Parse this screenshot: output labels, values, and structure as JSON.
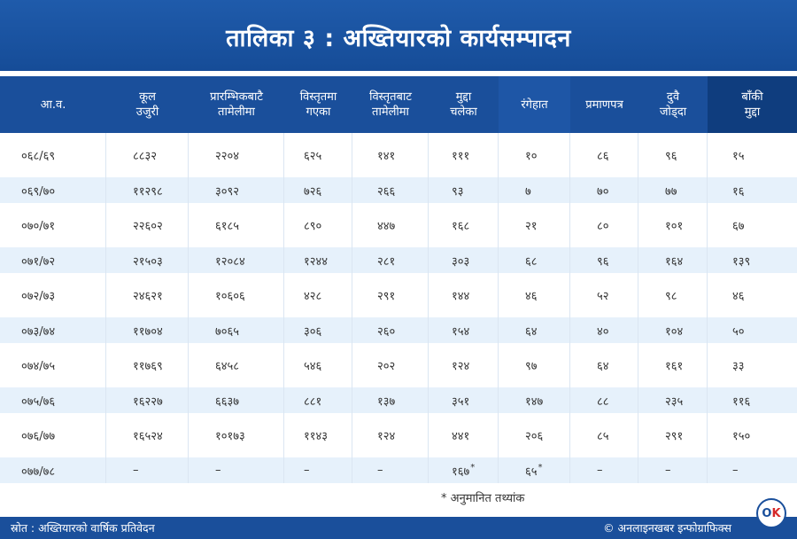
{
  "title": "तालिका ३ : अख्तियारको कार्यसम्पादन",
  "table": {
    "headers": [
      {
        "line1": "आ.व.",
        "line2": ""
      },
      {
        "line1": "कूल",
        "line2": "उजुरी"
      },
      {
        "line1": "प्रारम्भिकबाटै",
        "line2": "तामेलीमा"
      },
      {
        "line1": "विस्तृतमा",
        "line2": "गएका"
      },
      {
        "line1": "विस्तृतबाट",
        "line2": "तामेलीमा"
      },
      {
        "line1": "मुद्दा",
        "line2": "चलेका"
      },
      {
        "line1": "रंगेहात",
        "line2": ""
      },
      {
        "line1": "प्रमाणपत्र",
        "line2": ""
      },
      {
        "line1": "दुवै",
        "line2": "जोड्दा"
      },
      {
        "line1": "बाँकी",
        "line2": "मुद्दा"
      }
    ],
    "rows": [
      [
        "०६८/६९",
        "८८३२",
        "२२०४",
        "६२५",
        "१४१",
        "१११",
        "१०",
        "८६",
        "९६",
        "१५"
      ],
      [
        "०६९/७०",
        "११२९८",
        "३०९२",
        "७२६",
        "२६६",
        "९३",
        "७",
        "७०",
        "७७",
        "१६"
      ],
      [
        "०७०/७१",
        "२२६०२",
        "६१८५",
        "८९०",
        "४४७",
        "१६८",
        "२१",
        "८०",
        "१०१",
        "६७"
      ],
      [
        "०७१/७२",
        "२१५०३",
        "१२०८४",
        "१२४४",
        "२८१",
        "३०३",
        "६८",
        "९६",
        "१६४",
        "१३९"
      ],
      [
        "०७२/७३",
        "२४६२१",
        "१०६०६",
        "४२८",
        "२९१",
        "१४४",
        "४६",
        "५२",
        "९८",
        "४६"
      ],
      [
        "०७३/७४",
        "११७०४",
        "७०६५",
        "३०६",
        "२६०",
        "१५४",
        "६४",
        "४०",
        "१०४",
        "५०"
      ],
      [
        "०७४/७५",
        "११७६९",
        "६४५८",
        "५४६",
        "२०२",
        "१२४",
        "९७",
        "६४",
        "१६१",
        "३३"
      ],
      [
        "०७५/७६",
        "१६२२७",
        "६६३७",
        "८८१",
        "१३७",
        "३५१",
        "१४७",
        "८८",
        "२३५",
        "११६"
      ],
      [
        "०७६/७७",
        "१६५२४",
        "१०१७३",
        "११४३",
        "१२४",
        "४४१",
        "२०६",
        "८५",
        "२९१",
        "१५०"
      ],
      [
        "०७७/७८",
        "–",
        "–",
        "–",
        "–",
        "१६७",
        "६५",
        "–",
        "–",
        "–"
      ]
    ],
    "last_row_marks": {
      "col5": "*",
      "col6": "*"
    }
  },
  "footnote": "* अनुमानित तथ्यांक",
  "footer": {
    "source": "स्रोत : अख्तियारको वार्षिक प्रतिवेदन",
    "credit": "© अनलाइनखबर इन्फोग्राफिक्स"
  },
  "logo_text": "OK",
  "colors": {
    "primary": "#1a4f9b",
    "header_dark": "#0f3d7e",
    "row_alt": "#e6f1fb"
  }
}
